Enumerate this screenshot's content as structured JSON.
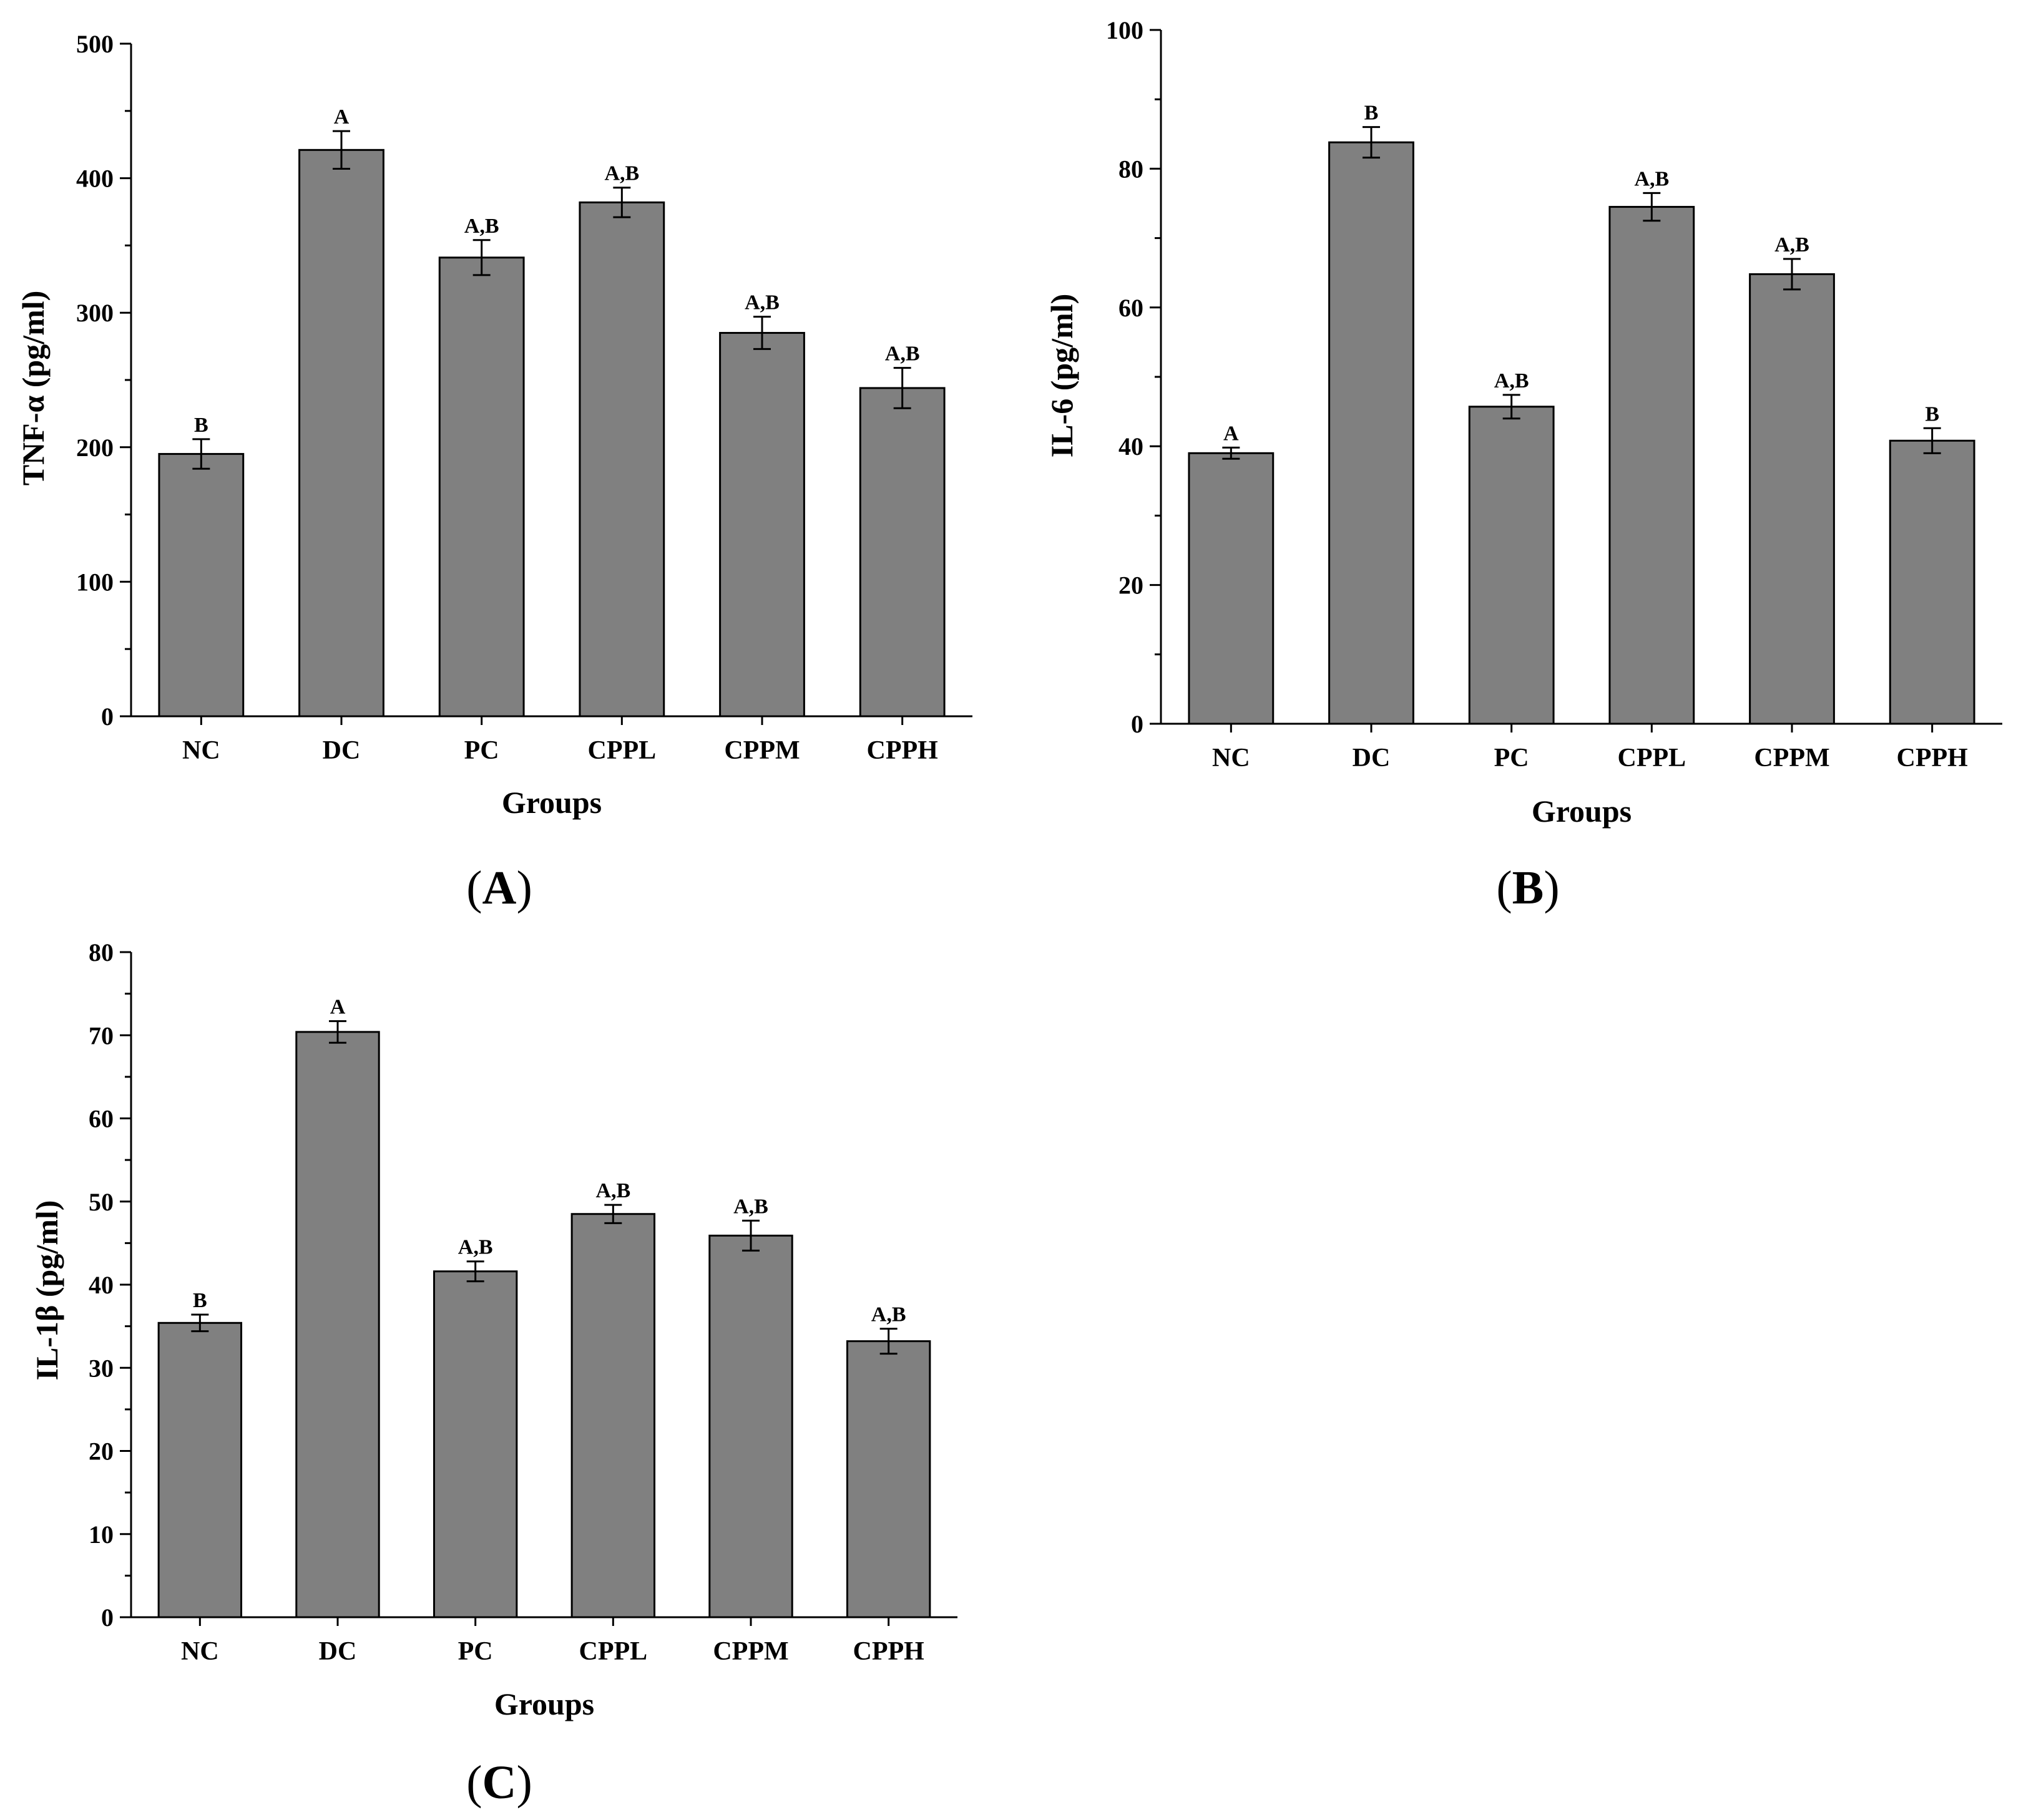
{
  "chart_data": [
    {
      "id": "A",
      "type": "bar",
      "panel_label": "(A)",
      "panel_letter": "A",
      "xlabel": "Groups",
      "ylabel": "TNF-α (pg/ml)",
      "categories": [
        "NC",
        "DC",
        "PC",
        "CPPL",
        "CPPM",
        "CPPH"
      ],
      "values": [
        195,
        421,
        341,
        382,
        285,
        244
      ],
      "errors": [
        11,
        14,
        13,
        11,
        12,
        15
      ],
      "significance": [
        "B",
        "A",
        "A,B",
        "A,B",
        "A,B",
        "A,B"
      ],
      "ylim": [
        0,
        500
      ],
      "yticks": [
        0,
        100,
        200,
        300,
        400,
        500
      ],
      "bar_color": "#808080",
      "grid": false
    },
    {
      "id": "B",
      "type": "bar",
      "panel_label": "(B)",
      "panel_letter": "B",
      "xlabel": "Groups",
      "ylabel": "IL-6 (pg/ml)",
      "categories": [
        "NC",
        "DC",
        "PC",
        "CPPL",
        "CPPM",
        "CPPH"
      ],
      "values": [
        39,
        83.8,
        45.7,
        74.5,
        64.8,
        40.8
      ],
      "errors": [
        0.8,
        2.2,
        1.7,
        2.0,
        2.2,
        1.8
      ],
      "significance": [
        "A",
        "B",
        "A,B",
        "A,B",
        "A,B",
        "B"
      ],
      "ylim": [
        0,
        100
      ],
      "yticks": [
        0,
        20,
        40,
        60,
        80,
        100
      ],
      "bar_color": "#808080",
      "grid": false
    },
    {
      "id": "C",
      "type": "bar",
      "panel_label": "(C)",
      "panel_letter": "C",
      "xlabel": "Groups",
      "ylabel": "IL-1β (pg/ml)",
      "categories": [
        "NC",
        "DC",
        "PC",
        "CPPL",
        "CPPM",
        "CPPH"
      ],
      "values": [
        35.4,
        70.4,
        41.6,
        48.5,
        45.9,
        33.2
      ],
      "errors": [
        1.0,
        1.3,
        1.2,
        1.1,
        1.8,
        1.5
      ],
      "significance": [
        "B",
        "A",
        "A,B",
        "A,B",
        "A,B",
        "A,B"
      ],
      "ylim": [
        0,
        80
      ],
      "yticks": [
        0,
        10,
        20,
        30,
        40,
        50,
        60,
        70,
        80
      ],
      "bar_color": "#808080",
      "grid": false
    }
  ]
}
